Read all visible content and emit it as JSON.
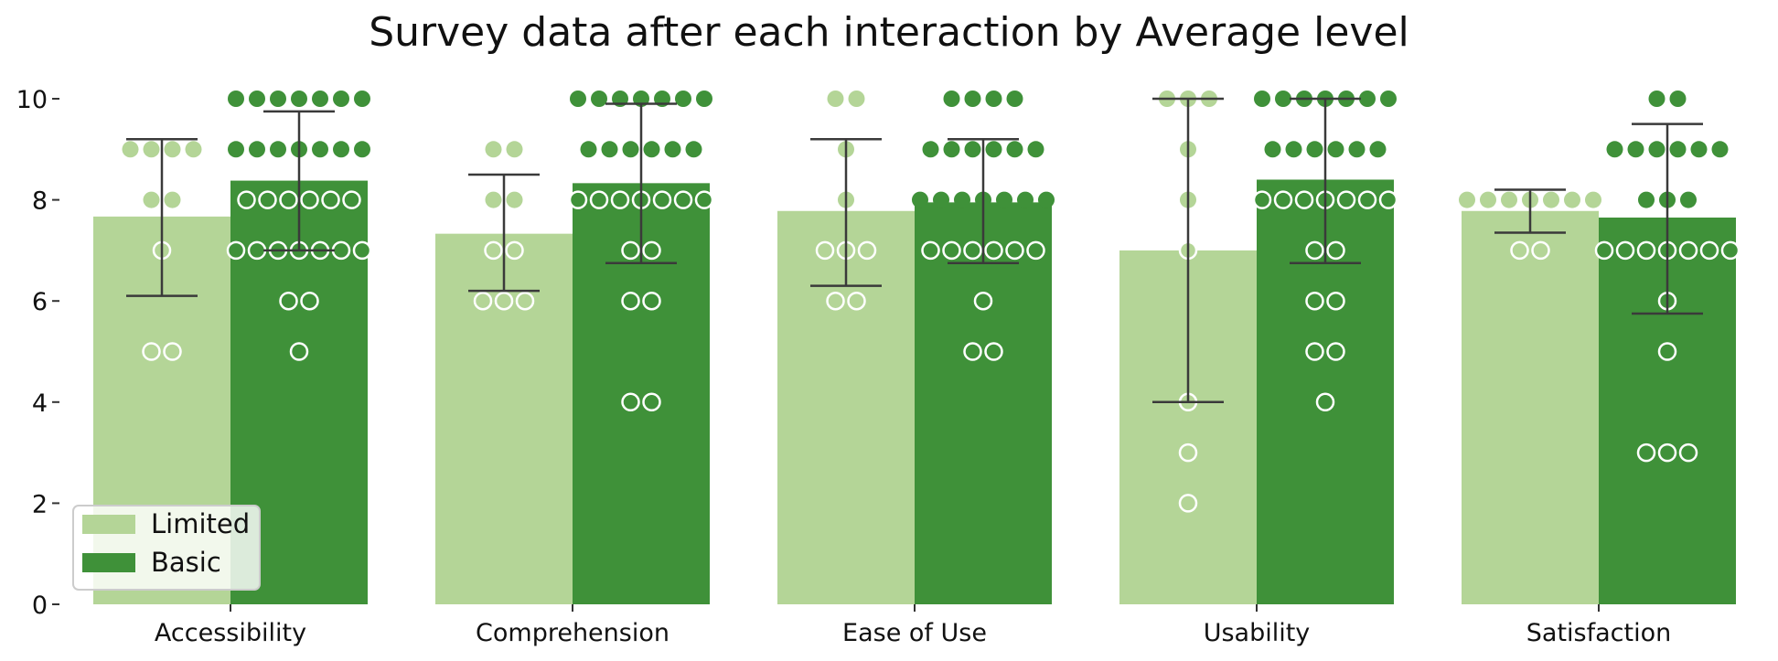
{
  "chart_data": {
    "type": "bar",
    "title": "Survey data after each interaction by Average level",
    "xlabel": "",
    "ylabel": "",
    "ylim": [
      0,
      10.5
    ],
    "yticks": [
      0,
      2,
      4,
      6,
      8,
      10
    ],
    "categories": [
      "Accessibility",
      "Comprehension",
      "Ease of Use",
      "Usability",
      "Satisfaction"
    ],
    "legend_position": "lower-left",
    "grid": false,
    "series": [
      {
        "name": "Limited",
        "color": "#b4d597",
        "values": [
          7.67,
          7.33,
          7.78,
          7.0,
          7.78
        ],
        "error_low": [
          6.1,
          6.2,
          6.3,
          4.0,
          7.35
        ],
        "error_high": [
          9.2,
          8.5,
          9.2,
          10.0,
          8.2
        ],
        "points": [
          [
            9,
            9,
            9,
            9,
            8,
            8,
            7,
            5,
            5
          ],
          [
            9,
            9,
            8,
            8,
            7,
            7,
            6,
            6,
            6
          ],
          [
            10,
            10,
            9,
            8,
            7,
            7,
            7,
            6,
            6
          ],
          [
            10,
            10,
            10,
            9,
            8,
            7,
            4,
            3,
            2
          ],
          [
            8,
            8,
            8,
            8,
            8,
            8,
            8,
            7,
            7
          ]
        ]
      },
      {
        "name": "Basic",
        "color": "#3f9139",
        "values": [
          8.38,
          8.33,
          7.95,
          8.4,
          7.65
        ],
        "error_low": [
          7.0,
          6.75,
          6.75,
          6.75,
          5.75
        ],
        "error_high": [
          9.75,
          9.9,
          9.2,
          10.0,
          9.5
        ],
        "points": [
          [
            10,
            10,
            10,
            10,
            10,
            10,
            10,
            9,
            9,
            9,
            9,
            9,
            9,
            9,
            8,
            8,
            8,
            8,
            8,
            8,
            7,
            7,
            7,
            7,
            7,
            7,
            7,
            6,
            6,
            5
          ],
          [
            10,
            10,
            10,
            10,
            10,
            10,
            10,
            9,
            9,
            9,
            9,
            9,
            9,
            8,
            8,
            8,
            8,
            8,
            8,
            8,
            7,
            7,
            6,
            6,
            4,
            4
          ],
          [
            10,
            10,
            10,
            10,
            9,
            9,
            9,
            9,
            9,
            9,
            8,
            8,
            8,
            8,
            8,
            8,
            8,
            7,
            7,
            7,
            7,
            7,
            7,
            6,
            5,
            5
          ],
          [
            10,
            10,
            10,
            10,
            10,
            10,
            10,
            9,
            9,
            9,
            9,
            9,
            9,
            8,
            8,
            8,
            8,
            8,
            8,
            8,
            7,
            7,
            6,
            6,
            5,
            5,
            4
          ],
          [
            10,
            10,
            9,
            9,
            9,
            9,
            9,
            9,
            8,
            8,
            8,
            7,
            7,
            7,
            7,
            7,
            7,
            7,
            6,
            5,
            3,
            3,
            3
          ]
        ]
      }
    ]
  }
}
